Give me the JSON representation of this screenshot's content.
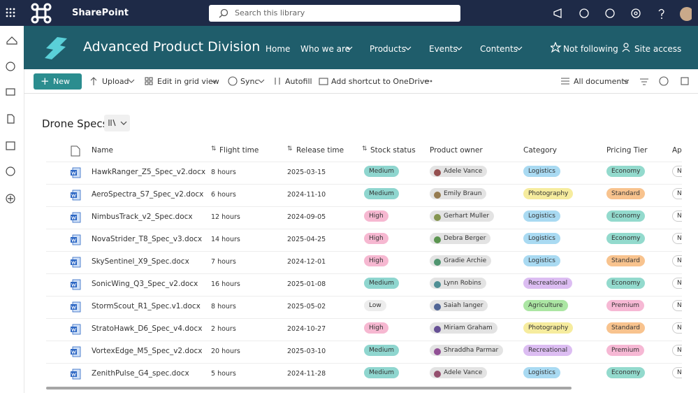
{
  "top_bar": {
    "app_name": "SharePoint",
    "search_placeholder": "Search this library"
  },
  "site_header": {
    "title": "Advanced Product Division",
    "nav": [
      "Home",
      "Who we are",
      "Products",
      "Events",
      "Contents"
    ],
    "follow": "Not following",
    "access": "Site access"
  },
  "command_bar": {
    "new": "New",
    "actions": [
      "Upload",
      "Edit in grid view",
      "Sync",
      "Autofill",
      "Add shortcut to OneDrive"
    ],
    "view": "All documents"
  },
  "library": {
    "title": "Drone Specs",
    "columns": [
      "Name",
      "Flight time",
      "Release time",
      "Stock status",
      "Product owner",
      "Category",
      "Pricing Tier",
      "App"
    ],
    "rows": [
      [
        "HawkRanger_Z5_Spec_v2.docx",
        "8 hours",
        "2025-03-15",
        "Medium",
        "Adele Vance",
        "Logistics",
        "Economy",
        "No"
      ],
      [
        "AeroSpectra_S7_Spec_v2.docx",
        "6 hours",
        "2024-11-10",
        "Medium",
        "Emily Braun",
        "Photography",
        "Standard",
        "No"
      ],
      [
        "NimbusTrack_v2_Spec.docx",
        "12 hours",
        "2024-09-05",
        "High",
        "Gerhart Muller",
        "Logistics",
        "Economy",
        "No"
      ],
      [
        "NovaStrider_T8_Spec_v3.docx",
        "14 hours",
        "2025-04-25",
        "High",
        "Debra Berger",
        "Logistics",
        "Economy",
        "No"
      ],
      [
        "SkySentinel_X9_Spec.docx",
        "7 hours",
        "2024-12-01",
        "High",
        "Gradie Archie",
        "Logistics",
        "Standard",
        "No"
      ],
      [
        "SonicWing_Q3_Spec_v2.docx",
        "16 hours",
        "2025-01-08",
        "Medium",
        "Lynn Robins",
        "Recreational",
        "Economy",
        "No"
      ],
      [
        "StormScout_R1_Spec.v1.docx",
        "8 hours",
        "2025-05-02",
        "Low",
        "Saiah langer",
        "Agriculture",
        "Premium",
        "No"
      ],
      [
        "StratoHawk_D6_Spec_v4.docx",
        "2 hours",
        "2024-10-27",
        "High",
        "Miriam Graham",
        "Photography",
        "Standard",
        "No"
      ],
      [
        "VortexEdge_M5_Spec_v2.docx",
        "20 hours",
        "2025-03-10",
        "Medium",
        "Shraddha Parmar",
        "Recreational",
        "Premium",
        "No"
      ],
      [
        "ZenithPulse_G4_spec.docx",
        "5 hours",
        "2024-11-28",
        "Medium",
        "Adele Vance",
        "Logistics",
        "Economy",
        "No"
      ]
    ],
    "pill_colors": {
      "Medium": "#8fd6cf",
      "High": "#f6b8d1",
      "Low": "#ededed",
      "Logistics": "#a9daf2",
      "Photography": "#f6ec9e",
      "Recreational": "#dcbdf2",
      "Agriculture": "#abe6a3",
      "Economy": "#93dacd",
      "Standard": "#f8c38e",
      "Premium": "#f6b8d4"
    }
  }
}
